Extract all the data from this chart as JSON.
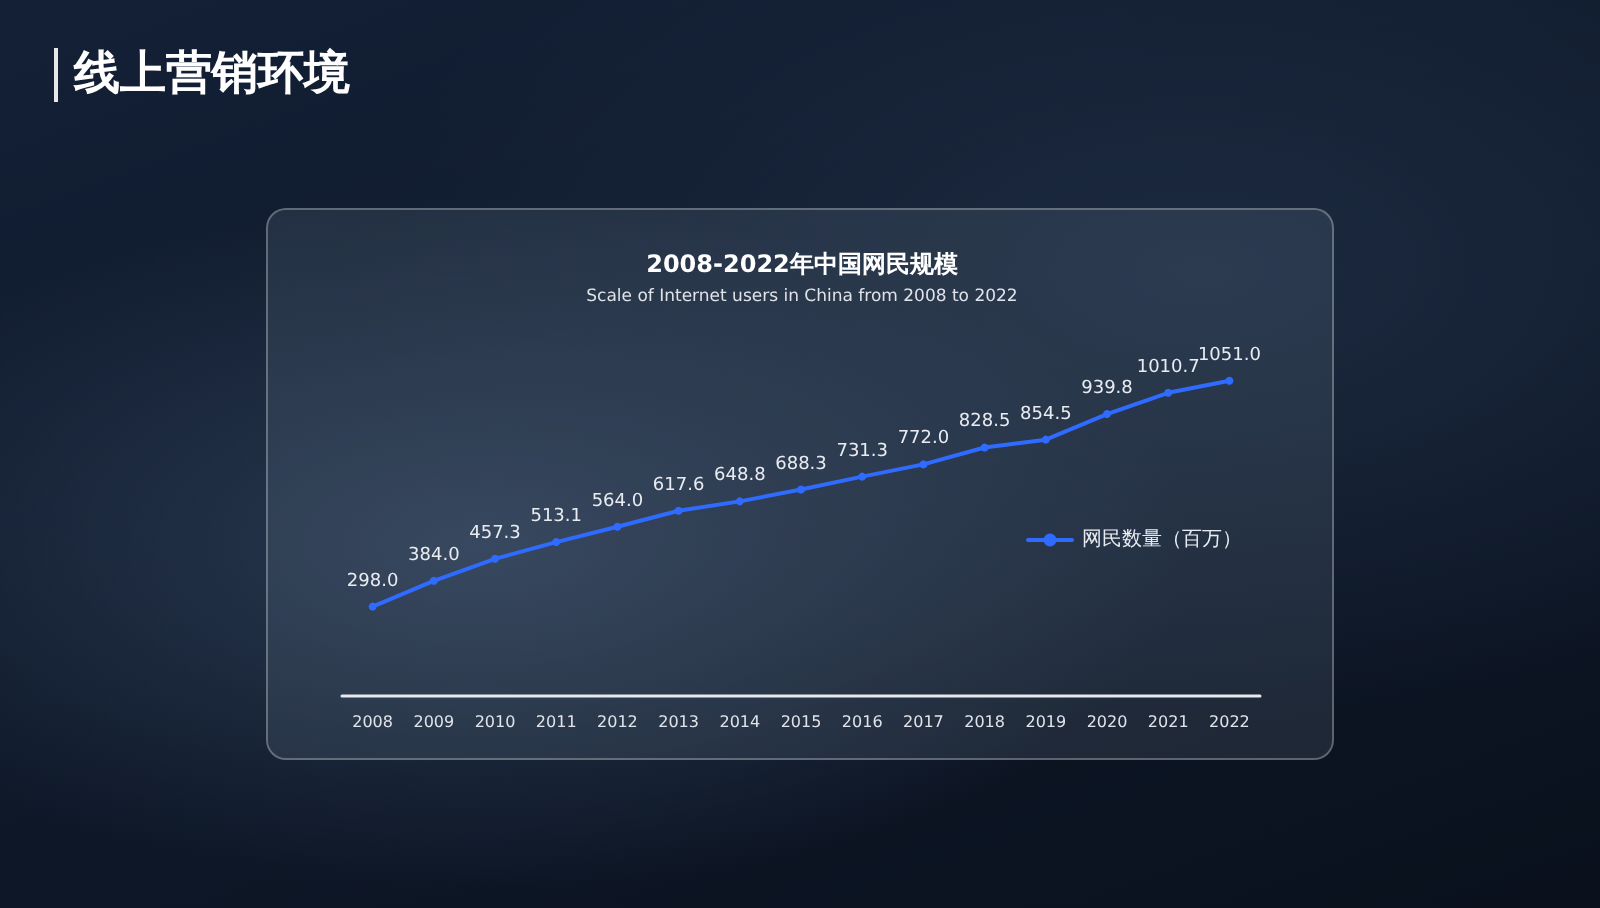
{
  "chart_data": {
    "type": "line",
    "title": "2008-2022年中国网民规模",
    "subtitle": "Scale of Internet users in China from 2008 to 2022",
    "annotations": [
      "线上营销环境"
    ],
    "categories": [
      "2008",
      "2009",
      "2010",
      "2011",
      "2012",
      "2013",
      "2014",
      "2015",
      "2016",
      "2017",
      "2018",
      "2019",
      "2020",
      "2021",
      "2022"
    ],
    "series": [
      {
        "name": "网民数量（百万）",
        "color": "#2f6bff",
        "values": [
          298.0,
          384.0,
          457.3,
          513.1,
          564.0,
          617.6,
          648.8,
          688.3,
          731.3,
          772.0,
          828.5,
          854.5,
          939.8,
          1010.7,
          1051.0
        ],
        "value_labels": [
          "298.0",
          "384.0",
          "457.3",
          "513.1",
          "564.0",
          "617.6",
          "648.8",
          "688.3",
          "731.3",
          "772.0",
          "828.5",
          "854.5",
          "939.8",
          "1010.7",
          "1051.0"
        ]
      }
    ],
    "tick_labels": "x",
    "grid": false,
    "legend": "right",
    "marker": "circle",
    "line_style": "solid"
  }
}
